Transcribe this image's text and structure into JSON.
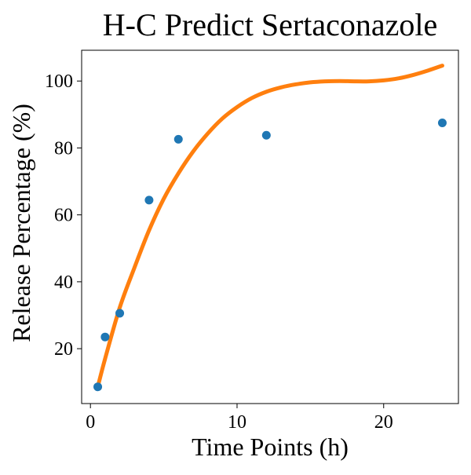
{
  "chart_data": {
    "type": "scatter",
    "title": "H-C Predict Sertaconazole",
    "xlabel": "Time Points (h)",
    "ylabel": "Release Percentage (%)",
    "xlim": [
      -0.6,
      25.1
    ],
    "ylim": [
      3.6,
      109.2
    ],
    "xticks": [
      0,
      10,
      20
    ],
    "yticks": [
      20,
      40,
      60,
      80,
      100
    ],
    "x_tick_labels": [
      "0",
      "10",
      "20"
    ],
    "y_tick_labels": [
      "20",
      "40",
      "60",
      "80",
      "100"
    ],
    "grid": false,
    "series": [
      {
        "kind": "scatter",
        "color": "#1f77b4",
        "x": [
          0.5,
          1,
          2,
          4,
          6,
          12,
          24
        ],
        "y": [
          8.6,
          23.5,
          30.6,
          64.4,
          82.6,
          83.8,
          87.5
        ]
      },
      {
        "kind": "line",
        "color": "#ff7f0e",
        "x": [
          0.5,
          1,
          2,
          3,
          4,
          5,
          6,
          7,
          8,
          9,
          10,
          11,
          12,
          13,
          14,
          15,
          16,
          17,
          18,
          19,
          20,
          21,
          22,
          23,
          24
        ],
        "y": [
          8.6,
          17.0,
          32.3,
          44.2,
          55.4,
          64.8,
          72.4,
          78.9,
          84.3,
          88.8,
          92.2,
          94.9,
          96.8,
          98.1,
          99.0,
          99.6,
          99.9,
          100.0,
          99.9,
          99.9,
          100.2,
          100.8,
          101.8,
          103.1,
          104.6
        ]
      }
    ]
  }
}
